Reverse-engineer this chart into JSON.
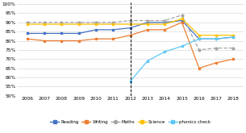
{
  "years_main": [
    2006,
    2007,
    2008,
    2009,
    2010,
    2011,
    2012,
    2013,
    2014,
    2015,
    2016,
    2017,
    2018
  ],
  "reading": [
    84,
    84,
    84,
    84,
    86,
    86,
    87,
    90,
    90,
    91,
    81,
    81,
    82
  ],
  "writing": [
    81,
    80,
    80,
    80,
    81,
    81,
    83,
    86,
    86,
    90,
    65,
    68,
    70
  ],
  "maths": [
    90,
    90,
    90,
    90,
    90,
    90,
    91,
    91,
    91,
    94,
    75,
    76,
    76
  ],
  "science": [
    89,
    89,
    89,
    89,
    89,
    89,
    89,
    89,
    89,
    92,
    83,
    83,
    83
  ],
  "phonics_years": [
    2012,
    2013,
    2014,
    2015,
    2016,
    2017,
    2018
  ],
  "phonics": [
    58,
    69,
    74,
    77,
    81,
    81,
    82
  ],
  "dashed_x": 2012,
  "ylim": [
    50,
    101
  ],
  "yticks": [
    50,
    55,
    60,
    65,
    70,
    75,
    80,
    85,
    90,
    95,
    100
  ],
  "ytick_labels": [
    "50%",
    "55%",
    "60%",
    "65%",
    "70%",
    "75%",
    "80%",
    "85%",
    "90%",
    "95%",
    "100%"
  ],
  "xticks": [
    2006,
    2007,
    2008,
    2009,
    2010,
    2011,
    2012,
    2013,
    2014,
    2015,
    2016,
    2017,
    2018
  ],
  "colors": {
    "reading": "#4472C4",
    "writing": "#ED7D31",
    "maths": "#A5A5A5",
    "science": "#FFC000",
    "phonics": "#5BC8F5"
  },
  "bg_color": "#FFFFFF",
  "grid_color": "#D9D9D9"
}
